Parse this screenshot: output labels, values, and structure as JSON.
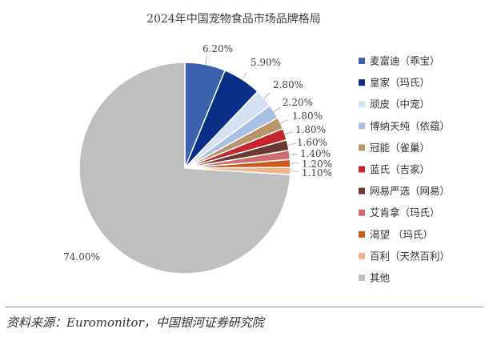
{
  "chart_data": {
    "type": "pie",
    "title": "2024年中国宠物食品市场品牌格局",
    "categories": [
      "麦富迪（乖宝）",
      "皇家（玛氏）",
      "顽皮（中宠）",
      "博纳天纯（依蕴）",
      "冠能（雀巢）",
      "蓝氏（吉家）",
      "网易严选（网易）",
      "艾肯拿（玛氏）",
      "渴望 （玛氏）",
      "百利（天然百利）",
      "其他"
    ],
    "values": [
      6.2,
      5.9,
      2.8,
      2.2,
      1.8,
      1.8,
      1.6,
      1.4,
      1.2,
      1.1,
      74.0
    ],
    "value_labels": [
      "6.20%",
      "5.90%",
      "2.80%",
      "2.20%",
      "1.80%",
      "1.80%",
      "1.60%",
      "1.40%",
      "1.20%",
      "1.10%",
      "74.00%"
    ],
    "colors": [
      "#3a62ad",
      "#0b2f86",
      "#d4e1f2",
      "#a8c0e3",
      "#b8966a",
      "#c7252e",
      "#6b3a34",
      "#d26b6f",
      "#cc5a1a",
      "#f0b28c",
      "#bfbfbf"
    ],
    "legend_position": "right",
    "start_angle": "12 o'clock",
    "direction": "clockwise"
  },
  "footer": {
    "source": "资料来源：Euromonitor，中国银河证券研究院"
  }
}
